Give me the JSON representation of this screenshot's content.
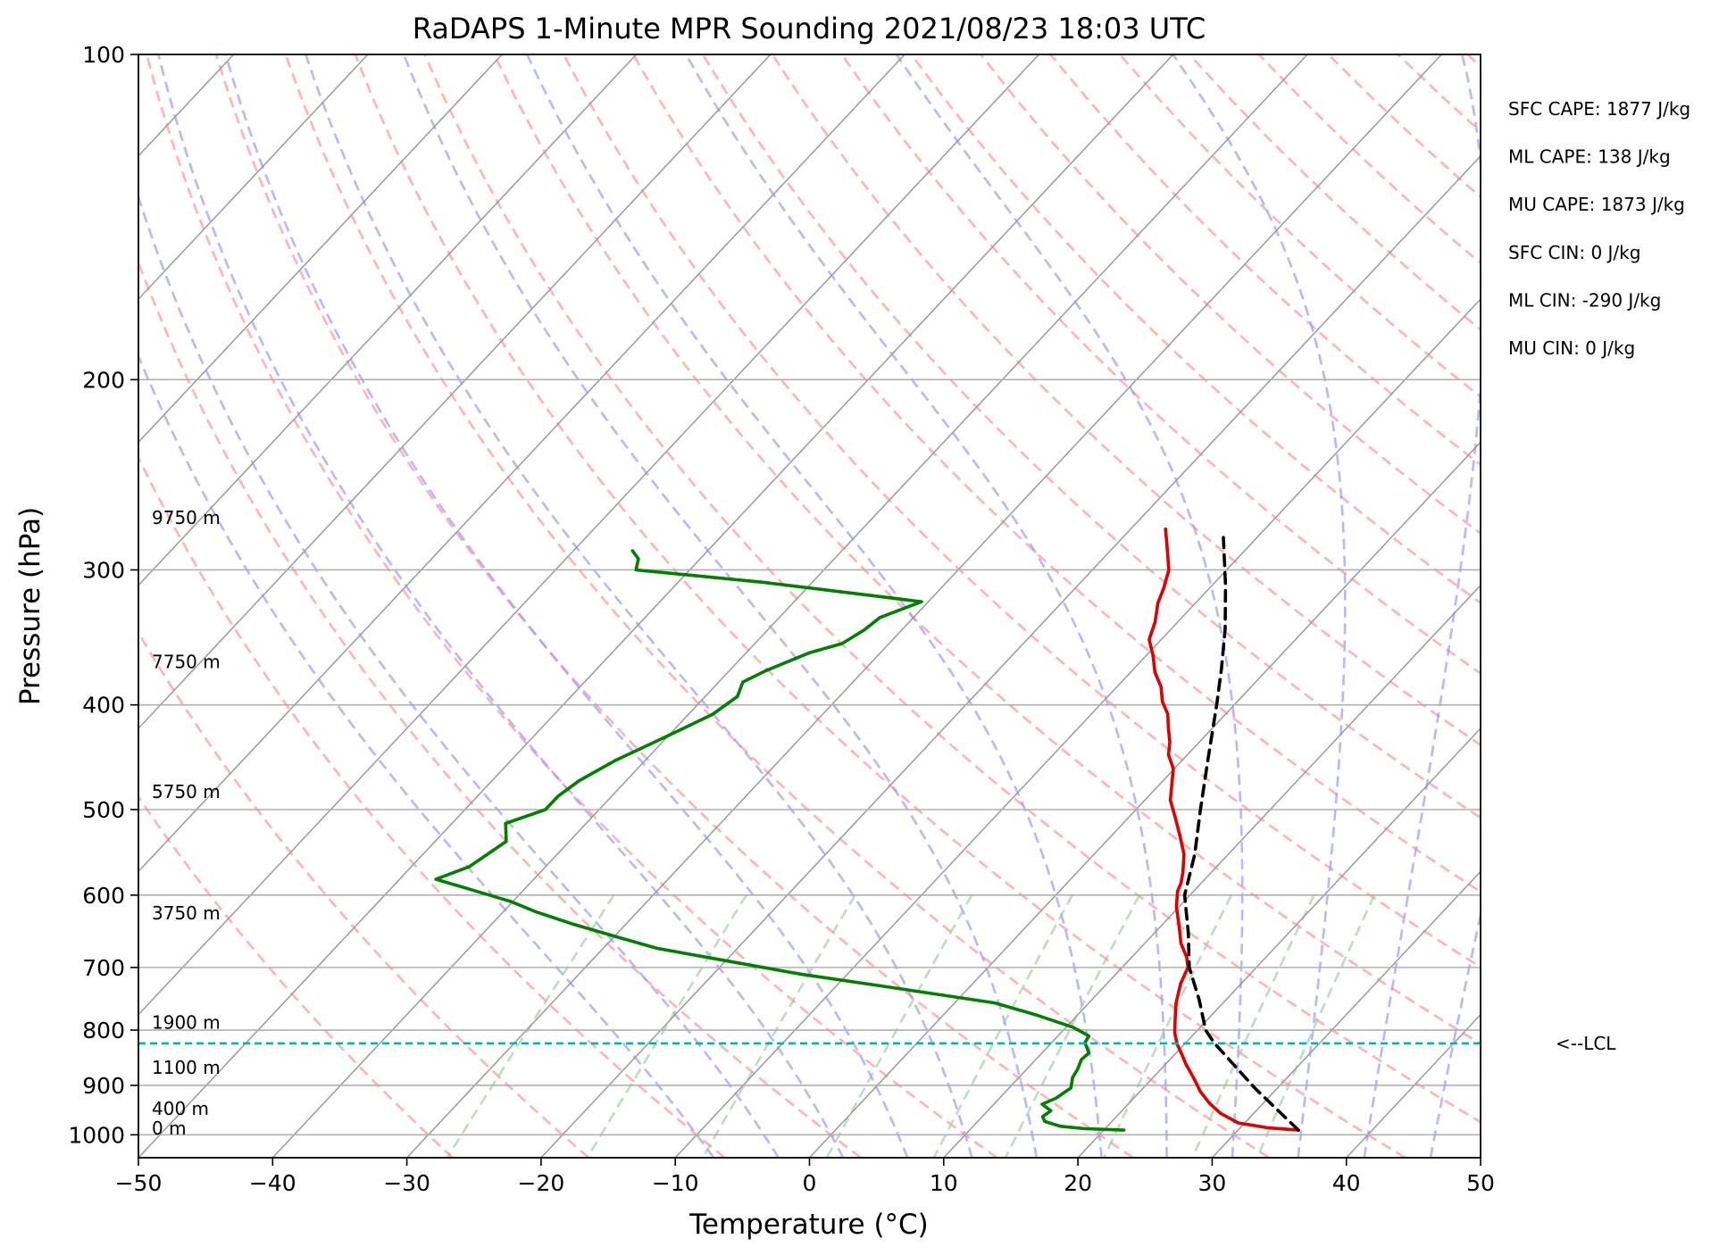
{
  "chart_data": {
    "type": "line",
    "title": "RaDAPS 1-Minute MPR Sounding 2021/08/23 18:03 UTC",
    "xlabel": "Temperature (°C)",
    "ylabel": "Pressure (hPa)",
    "xlim": [
      -50,
      50
    ],
    "ylim": [
      1050,
      100
    ],
    "y_scale": "log",
    "skew": "skew-T log-P",
    "grid": true,
    "x_ticks": [
      -50,
      -40,
      -30,
      -20,
      -10,
      0,
      10,
      20,
      30,
      40,
      50
    ],
    "x_tick_labels": [
      "−50",
      "−40",
      "−30",
      "−20",
      "−10",
      "0",
      "10",
      "20",
      "30",
      "40",
      "50"
    ],
    "y_ticks": [
      100,
      200,
      300,
      400,
      500,
      600,
      700,
      800,
      900,
      1000
    ],
    "y_tick_labels": [
      "100",
      "200",
      "300",
      "400",
      "500",
      "600",
      "700",
      "800",
      "900",
      "1000"
    ],
    "series": [
      {
        "role": "temperature",
        "color": "#e00000",
        "points": [
          [
            34.5,
            990
          ],
          [
            32,
            985
          ],
          [
            29.5,
            975
          ],
          [
            27.5,
            955
          ],
          [
            26,
            935
          ],
          [
            24.5,
            912
          ],
          [
            23,
            885
          ],
          [
            21.5,
            860
          ],
          [
            20.5,
            842
          ],
          [
            19.5,
            825
          ],
          [
            18.5,
            805
          ],
          [
            17.5,
            780
          ],
          [
            16.5,
            755
          ],
          [
            15.5,
            725
          ],
          [
            14.9,
            700
          ],
          [
            14.1,
            685
          ],
          [
            12.7,
            665
          ],
          [
            11.3,
            640
          ],
          [
            9.8,
            615
          ],
          [
            8.8,
            595
          ],
          [
            8.5,
            585
          ],
          [
            7.9,
            572
          ],
          [
            6.7,
            550
          ],
          [
            5.2,
            530
          ],
          [
            3.6,
            510
          ],
          [
            1.9,
            490
          ],
          [
            0.8,
            472
          ],
          [
            -0.1,
            458
          ],
          [
            -1.4,
            445
          ],
          [
            -2.2,
            433
          ],
          [
            -3.3,
            420
          ],
          [
            -4.3,
            408
          ],
          [
            -5.6,
            397
          ],
          [
            -6.7,
            385
          ],
          [
            -8.2,
            373
          ],
          [
            -9.5,
            360
          ],
          [
            -10.9,
            348
          ],
          [
            -11.7,
            335
          ],
          [
            -12.8,
            322
          ],
          [
            -13.4,
            312
          ],
          [
            -14.3,
            300
          ],
          [
            -15.5,
            290
          ],
          [
            -16.5,
            282
          ],
          [
            -17.4,
            275
          ]
        ]
      },
      {
        "role": "dewpoint",
        "color": "#008000",
        "points": [
          [
            21.5,
            990
          ],
          [
            18.5,
            987
          ],
          [
            16.5,
            982
          ],
          [
            15,
            972
          ],
          [
            14.5,
            962
          ],
          [
            14.7,
            950
          ],
          [
            13.6,
            937
          ],
          [
            14.2,
            925
          ],
          [
            14.6,
            905
          ],
          [
            14.0,
            885
          ],
          [
            13.8,
            870
          ],
          [
            13.4,
            852
          ],
          [
            13.5,
            840
          ],
          [
            12.5,
            822
          ],
          [
            12.3,
            810
          ],
          [
            10.5,
            795
          ],
          [
            7.0,
            775
          ],
          [
            3.0,
            755
          ],
          [
            -6.0,
            730
          ],
          [
            -13.5,
            710
          ],
          [
            -20.0,
            690
          ],
          [
            -26.0,
            672
          ],
          [
            -30.0,
            655
          ],
          [
            -34.0,
            638
          ],
          [
            -37.5,
            622
          ],
          [
            -40.2,
            608
          ],
          [
            -43.2,
            596
          ],
          [
            -47.3,
            580
          ],
          [
            -45.7,
            565
          ],
          [
            -45.2,
            550
          ],
          [
            -44.7,
            535
          ],
          [
            -46.0,
            515
          ],
          [
            -44.0,
            500
          ],
          [
            -44.0,
            486
          ],
          [
            -43.5,
            470
          ],
          [
            -42.2,
            450
          ],
          [
            -40.1,
            428
          ],
          [
            -38.2,
            408
          ],
          [
            -37.6,
            393
          ],
          [
            -38.2,
            381
          ],
          [
            -37.3,
            372
          ],
          [
            -35.3,
            358
          ],
          [
            -33.5,
            351
          ],
          [
            -32.8,
            341
          ],
          [
            -32.5,
            332
          ],
          [
            -30.5,
            321
          ],
          [
            -43.7,
            308
          ],
          [
            -54.0,
            300
          ],
          [
            -54.6,
            293
          ],
          [
            -55.6,
            288
          ]
        ]
      },
      {
        "role": "parcel path",
        "color": "#000000",
        "dashed": true,
        "points": [
          [
            34.5,
            990
          ],
          [
            28.3,
            905
          ],
          [
            22.2,
            823
          ],
          [
            20.6,
            800
          ],
          [
            18.0,
            750
          ],
          [
            15.0,
            700
          ],
          [
            12.5,
            650
          ],
          [
            9.6,
            600
          ],
          [
            7.5,
            550
          ],
          [
            4.8,
            500
          ],
          [
            1.9,
            450
          ],
          [
            -1.3,
            400
          ],
          [
            -3.5,
            370
          ],
          [
            -6.0,
            340
          ],
          [
            -9.0,
            310
          ],
          [
            -12.5,
            280
          ]
        ]
      }
    ],
    "lcl": {
      "pressure_hpa": 823,
      "label": "<--LCL"
    },
    "height_labels": [
      {
        "text": "9750 m",
        "pressure_hpa": 272
      },
      {
        "text": "7750 m",
        "pressure_hpa": 370
      },
      {
        "text": "5750 m",
        "pressure_hpa": 488
      },
      {
        "text": "3750 m",
        "pressure_hpa": 632
      },
      {
        "text": "1900 m",
        "pressure_hpa": 798
      },
      {
        "text": "1100 m",
        "pressure_hpa": 878
      },
      {
        "text": "400 m",
        "pressure_hpa": 958
      },
      {
        "text": "0 m",
        "pressure_hpa": 999
      }
    ],
    "annotations": [
      "SFC CAPE: 1877 J/kg",
      "ML CAPE: 138 J/kg",
      "MU CAPE: 1873 J/kg",
      "SFC CIN: 0 J/kg",
      "ML CIN: -290 J/kg",
      "MU CIN: 0 J/kg"
    ],
    "background_lines": {
      "isotherms_color": "#9a9a9a",
      "dry_adiabats_color": "#ff9999",
      "moist_adiabats_color": "#9999ff",
      "mixing_ratio_color": "#99cc99",
      "lcl_line_color": "#00b3b3"
    }
  }
}
